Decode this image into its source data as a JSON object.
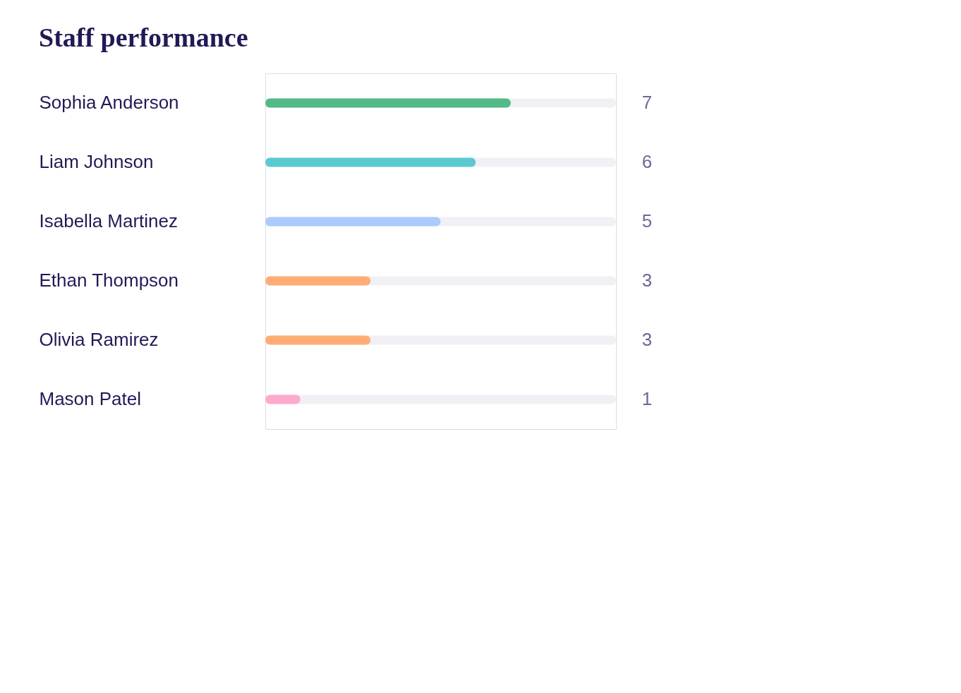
{
  "chart_data": {
    "type": "bar",
    "orientation": "horizontal",
    "title": "Staff performance",
    "categories": [
      "Sophia Anderson",
      "Liam Johnson",
      "Isabella Martinez",
      "Ethan Thompson",
      "Olivia Ramirez",
      "Mason Patel"
    ],
    "values": [
      7,
      6,
      5,
      3,
      3,
      1
    ],
    "colors": [
      "#53b987",
      "#5bc9d0",
      "#abcbfd",
      "#ffad75",
      "#ffad75",
      "#ffaacc"
    ],
    "xlim": [
      0,
      10
    ],
    "data_labels": true,
    "tick_labels": "y"
  }
}
